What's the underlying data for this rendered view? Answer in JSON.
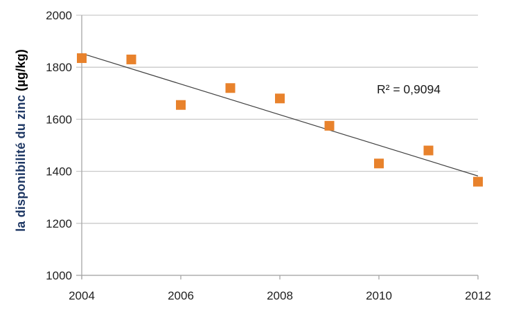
{
  "chart_data": {
    "type": "scatter",
    "title": "",
    "x": [
      2004,
      2005,
      2006,
      2007,
      2008,
      2009,
      2010,
      2011,
      2012
    ],
    "values": [
      1835,
      1830,
      1655,
      1720,
      1680,
      1575,
      1430,
      1480,
      1360
    ],
    "xlabel": "",
    "ylabel": "la disponibilité du zinc (µg/kg)",
    "ylabel_parts": [
      {
        "text": "la disponibilité du zinc ",
        "color": "#1F3864"
      },
      {
        "text": "(µg/kg)",
        "color": "#000000"
      }
    ],
    "xlim": [
      2004,
      2012
    ],
    "ylim": [
      1000,
      2000
    ],
    "x_ticks": [
      2004,
      2006,
      2008,
      2010,
      2012
    ],
    "y_ticks": [
      1000,
      1200,
      1400,
      1600,
      1800,
      2000
    ],
    "grid": true,
    "legend": "none",
    "annotation": "R² = 0,9094",
    "trendline": {
      "type": "linear",
      "x1": 2004,
      "y1": 1853,
      "x2": 2012,
      "y2": 1382,
      "r_squared": 0.9094
    },
    "marker": {
      "shape": "square",
      "color": "#E8822C",
      "size": 14
    },
    "colors": {
      "marker_orange": "#E8822C",
      "ylabel_blue": "#1F3864",
      "gridline": "#C9C9C9",
      "axis": "#A6A6A6",
      "trendline": "#404040",
      "tick_text": "#1F1F1F"
    }
  }
}
